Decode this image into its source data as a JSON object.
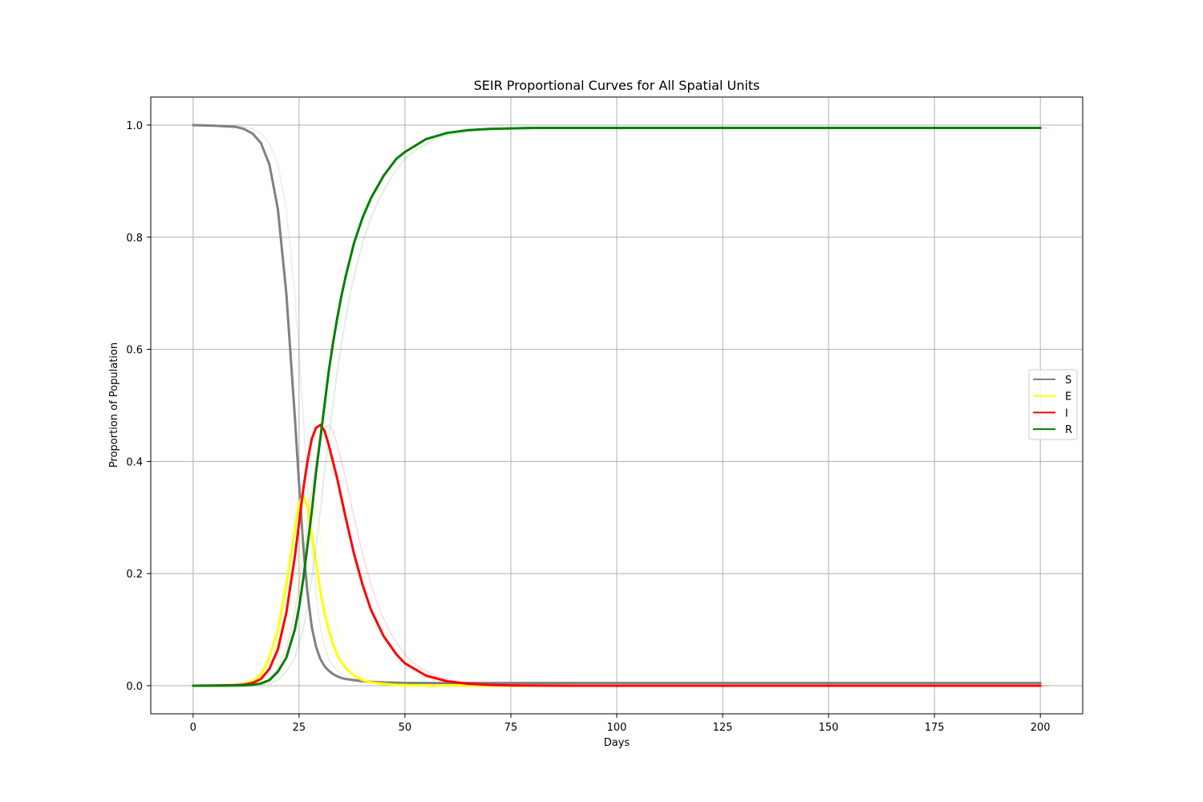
{
  "chart_data": {
    "type": "line",
    "title": "SEIR Proportional Curves for All Spatial Units",
    "xlabel": "Days",
    "ylabel": "Proportion of Population",
    "xlim": [
      -10,
      210
    ],
    "ylim": [
      -0.05,
      1.05
    ],
    "xticks": [
      0,
      25,
      50,
      75,
      100,
      125,
      150,
      175,
      200
    ],
    "xtick_labels": [
      "0",
      "25",
      "50",
      "75",
      "100",
      "125",
      "150",
      "175",
      "200"
    ],
    "yticks": [
      0.0,
      0.2,
      0.4,
      0.6,
      0.8,
      1.0
    ],
    "ytick_labels": [
      "0.0",
      "0.2",
      "0.4",
      "0.6",
      "0.8",
      "1.0"
    ],
    "grid": true,
    "legend_position": "center-right",
    "x": [
      0,
      5,
      10,
      12,
      14,
      16,
      18,
      20,
      22,
      24,
      25,
      26,
      27,
      28,
      29,
      30,
      31,
      32,
      33,
      34,
      35,
      36,
      38,
      40,
      42,
      45,
      48,
      50,
      55,
      60,
      65,
      70,
      75,
      80,
      90,
      100,
      125,
      150,
      175,
      200
    ],
    "series": [
      {
        "name": "S",
        "color": "#808080",
        "values": [
          1.0,
          0.999,
          0.997,
          0.993,
          0.985,
          0.968,
          0.93,
          0.85,
          0.7,
          0.48,
          0.36,
          0.25,
          0.165,
          0.105,
          0.07,
          0.048,
          0.035,
          0.027,
          0.021,
          0.017,
          0.014,
          0.012,
          0.01,
          0.008,
          0.007,
          0.006,
          0.0055,
          0.005,
          0.005,
          0.005,
          0.005,
          0.005,
          0.005,
          0.005,
          0.005,
          0.005,
          0.005,
          0.005,
          0.005,
          0.005
        ]
      },
      {
        "name": "E",
        "color": "#ffff00",
        "values": [
          0.0,
          0.0005,
          0.0015,
          0.003,
          0.008,
          0.02,
          0.05,
          0.1,
          0.18,
          0.28,
          0.325,
          0.34,
          0.32,
          0.27,
          0.22,
          0.17,
          0.13,
          0.1,
          0.075,
          0.055,
          0.042,
          0.032,
          0.018,
          0.01,
          0.006,
          0.003,
          0.0015,
          0.001,
          0.0005,
          0.0003,
          0.0002,
          0.0001,
          0.0,
          0.0,
          0.0,
          0.0,
          0.0,
          0.0,
          0.0,
          0.0
        ]
      },
      {
        "name": "I",
        "color": "#ff0000",
        "values": [
          0.0,
          0.0003,
          0.001,
          0.002,
          0.005,
          0.012,
          0.03,
          0.065,
          0.13,
          0.23,
          0.29,
          0.35,
          0.4,
          0.44,
          0.46,
          0.465,
          0.455,
          0.43,
          0.4,
          0.37,
          0.335,
          0.3,
          0.235,
          0.18,
          0.135,
          0.088,
          0.056,
          0.04,
          0.018,
          0.008,
          0.0035,
          0.0015,
          0.0007,
          0.0003,
          0.0001,
          0.0,
          0.0,
          0.0,
          0.0,
          0.0
        ]
      },
      {
        "name": "R",
        "color": "#008000",
        "values": [
          0.0,
          0.0001,
          0.0003,
          0.0007,
          0.0015,
          0.004,
          0.01,
          0.025,
          0.05,
          0.1,
          0.14,
          0.19,
          0.25,
          0.31,
          0.38,
          0.44,
          0.5,
          0.56,
          0.61,
          0.655,
          0.695,
          0.73,
          0.79,
          0.835,
          0.87,
          0.91,
          0.94,
          0.952,
          0.975,
          0.986,
          0.991,
          0.993,
          0.994,
          0.995,
          0.995,
          0.995,
          0.995,
          0.995,
          0.995,
          0.995
        ]
      }
    ]
  }
}
